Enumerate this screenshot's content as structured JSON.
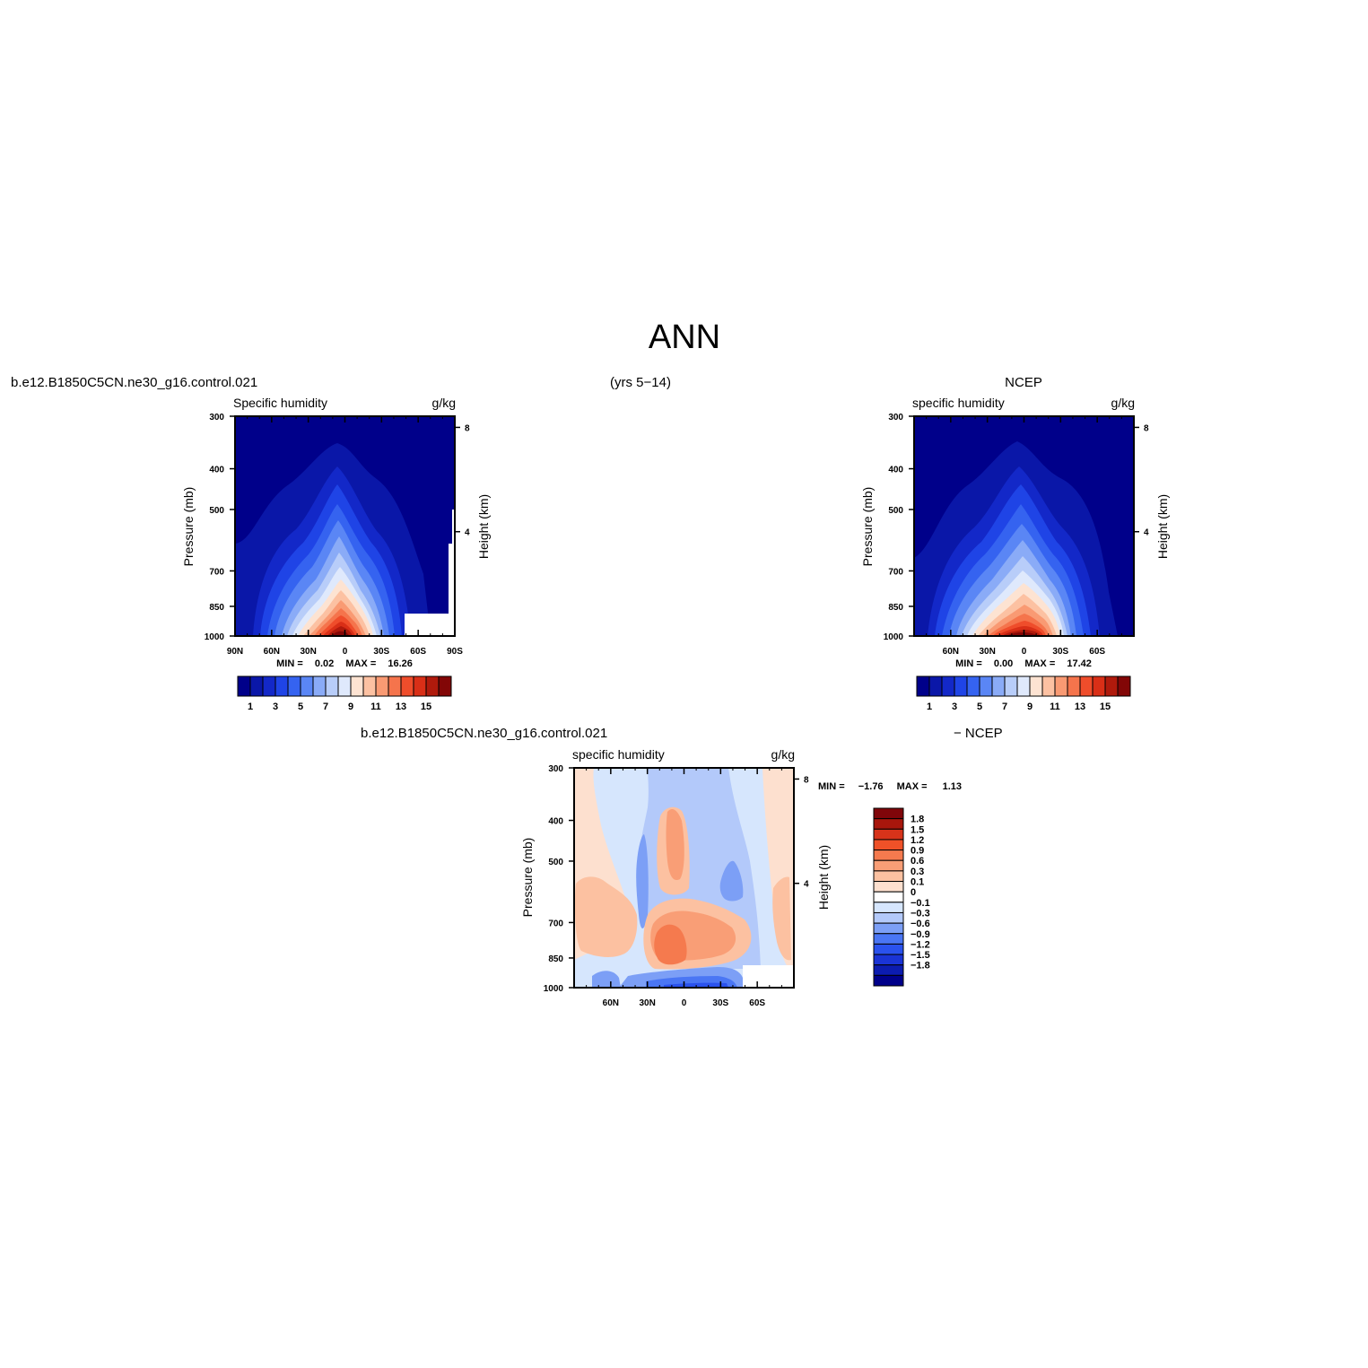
{
  "page": {
    "title": "ANN",
    "case_name": "b.e12.B1850C5CN.ne30_g16.control.021",
    "years": "(yrs 5−14)",
    "obs_name": "NCEP",
    "diff_case_name": "b.e12.B1850C5CN.ne30_g16.control.021",
    "diff_obs_name": "− NCEP"
  },
  "colors": {
    "model_levels": [
      "#00008a",
      "#0a17a8",
      "#1328c8",
      "#1f44e6",
      "#3563f0",
      "#5a86f5",
      "#8aabf7",
      "#b8cdf9",
      "#dfe9fc",
      "#fde3d2",
      "#fcc1a2",
      "#f99a73",
      "#f5744c",
      "#ef4d2b",
      "#d92f17",
      "#b01a0c",
      "#820606"
    ],
    "diff_levels": [
      "#00008a",
      "#0c1cb0",
      "#1a34d6",
      "#2a52ee",
      "#4a76f4",
      "#7c9ff6",
      "#b3c9fa",
      "#d6e6fd",
      "#ffffff",
      "#fde0cf",
      "#fcc1a1",
      "#f99e76",
      "#f57a4e",
      "#ef5128",
      "#d7331a",
      "#a8160c",
      "#80060a"
    ]
  },
  "chart_data": [
    {
      "type": "heatmap",
      "title": "Specific humidity",
      "units": "g/kg",
      "xlabel": "",
      "ylabel": "Pressure (mb)",
      "y2label": "Height (km)",
      "xticks": [
        "90N",
        "60N",
        "30N",
        "0",
        "30S",
        "60S",
        "90S"
      ],
      "yticks": [
        300,
        400,
        500,
        700,
        850,
        1000
      ],
      "y2ticks": [
        8,
        4
      ],
      "stats": {
        "min_label": "MIN =",
        "min": "0.02",
        "max_label": "MAX =",
        "max": "16.26"
      },
      "colorbar_labels": [
        "1",
        "3",
        "5",
        "7",
        "9",
        "11",
        "13",
        "15"
      ],
      "grid": false
    },
    {
      "type": "heatmap",
      "title": "specific humidity",
      "units": "g/kg",
      "xlabel": "",
      "ylabel": "Pressure (mb)",
      "y2label": "Height (km)",
      "xticks": [
        "60N",
        "30N",
        "0",
        "30S",
        "60S"
      ],
      "yticks": [
        300,
        400,
        500,
        700,
        850,
        1000
      ],
      "y2ticks": [
        8,
        4
      ],
      "stats": {
        "min_label": "MIN =",
        "min": "0.00",
        "max_label": "MAX =",
        "max": "17.42"
      },
      "colorbar_labels": [
        "1",
        "3",
        "5",
        "7",
        "9",
        "11",
        "13",
        "15"
      ],
      "grid": false
    },
    {
      "type": "heatmap",
      "title": "specific humidity",
      "units": "g/kg",
      "xlabel": "",
      "ylabel": "Pressure (mb)",
      "y2label": "Height (km)",
      "xticks": [
        "60N",
        "30N",
        "0",
        "30S",
        "60S"
      ],
      "yticks": [
        300,
        400,
        500,
        700,
        850,
        1000
      ],
      "y2ticks": [
        8,
        4
      ],
      "stats": {
        "min_label": "MIN =",
        "min": "−1.76",
        "max_label": "MAX =",
        "max": "1.13"
      },
      "colorbar_labels": [
        "1.8",
        "1.5",
        "1.2",
        "0.9",
        "0.6",
        "0.3",
        "0.1",
        "0",
        "−0.1",
        "−0.3",
        "−0.6",
        "−0.9",
        "−1.2",
        "−1.5",
        "−1.8"
      ],
      "grid": false
    }
  ]
}
